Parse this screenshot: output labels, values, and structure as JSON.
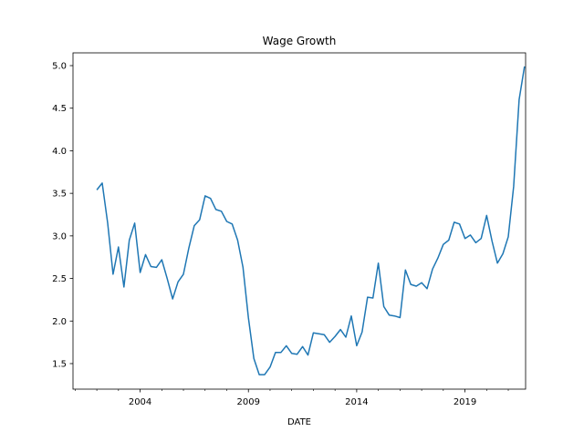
{
  "chart_data": {
    "type": "line",
    "title": "Wage Growth",
    "xlabel": "DATE",
    "ylabel": "",
    "grid": false,
    "line_color": "#1f77b4",
    "xlim": [
      2000.9,
      2021.8
    ],
    "ylim": [
      1.2,
      5.15
    ],
    "x_ticks": [
      {
        "value": 2004,
        "label": "2004"
      },
      {
        "value": 2009,
        "label": "2009"
      },
      {
        "value": 2014,
        "label": "2014"
      },
      {
        "value": 2019,
        "label": "2019"
      }
    ],
    "x_minor_ticks": [
      2001,
      2002,
      2003,
      2005,
      2006,
      2007,
      2008,
      2010,
      2011,
      2012,
      2013,
      2015,
      2016,
      2017,
      2018,
      2020,
      2021
    ],
    "y_ticks": [
      {
        "value": 1.5,
        "label": "1.5"
      },
      {
        "value": 2.0,
        "label": "2.0"
      },
      {
        "value": 2.5,
        "label": "2.5"
      },
      {
        "value": 3.0,
        "label": "3.0"
      },
      {
        "value": 3.5,
        "label": "3.5"
      },
      {
        "value": 4.0,
        "label": "4.0"
      },
      {
        "value": 4.5,
        "label": "4.5"
      },
      {
        "value": 5.0,
        "label": "5.0"
      }
    ],
    "series": [
      {
        "x": [
          2002.0,
          2002.25,
          2002.5,
          2002.75,
          2003.0,
          2003.25,
          2003.5,
          2003.75,
          2004.0,
          2004.25,
          2004.5,
          2004.75,
          2005.0,
          2005.25,
          2005.5,
          2005.75,
          2006.0,
          2006.25,
          2006.5,
          2006.75,
          2007.0,
          2007.25,
          2007.5,
          2007.75,
          2008.0,
          2008.25,
          2008.5,
          2008.75,
          2009.0,
          2009.25,
          2009.5,
          2009.75,
          2010.0,
          2010.25,
          2010.5,
          2010.75,
          2011.0,
          2011.25,
          2011.5,
          2011.75,
          2012.0,
          2012.25,
          2012.5,
          2012.75,
          2013.0,
          2013.25,
          2013.5,
          2013.75,
          2014.0,
          2014.25,
          2014.5,
          2014.75,
          2015.0,
          2015.25,
          2015.5,
          2015.75,
          2016.0,
          2016.25,
          2016.5,
          2016.75,
          2017.0,
          2017.25,
          2017.5,
          2017.75,
          2018.0,
          2018.25,
          2018.5,
          2018.75,
          2019.0,
          2019.25,
          2019.5,
          2019.75,
          2020.0,
          2020.25,
          2020.5,
          2020.75,
          2021.0,
          2021.25,
          2021.5,
          2021.75
        ],
        "values": [
          3.54,
          3.62,
          3.15,
          2.55,
          2.87,
          2.4,
          2.95,
          3.15,
          2.57,
          2.78,
          2.64,
          2.63,
          2.72,
          2.5,
          2.26,
          2.46,
          2.55,
          2.86,
          3.12,
          3.19,
          3.47,
          3.44,
          3.31,
          3.29,
          3.17,
          3.14,
          2.95,
          2.63,
          2.04,
          1.56,
          1.37,
          1.37,
          1.46,
          1.63,
          1.63,
          1.71,
          1.62,
          1.61,
          1.7,
          1.6,
          1.86,
          1.85,
          1.84,
          1.75,
          1.82,
          1.9,
          1.81,
          2.06,
          1.71,
          1.87,
          2.28,
          2.27,
          2.68,
          2.17,
          2.07,
          2.06,
          2.04,
          2.6,
          2.43,
          2.41,
          2.45,
          2.38,
          2.61,
          2.74,
          2.9,
          2.95,
          3.16,
          3.14,
          2.97,
          3.01,
          2.92,
          2.97,
          3.24,
          2.94,
          2.68,
          2.79,
          2.99,
          3.58,
          4.6,
          4.99
        ]
      }
    ]
  }
}
